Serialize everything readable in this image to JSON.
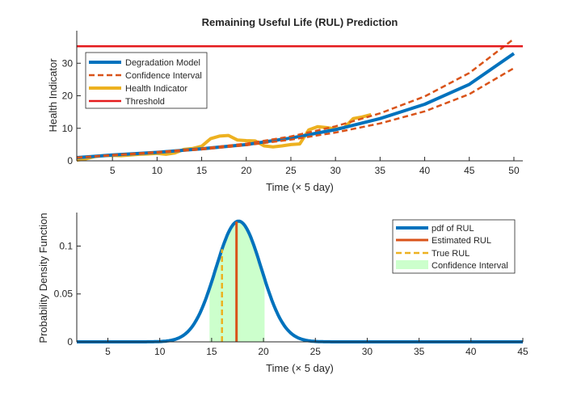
{
  "chart_data": [
    {
      "type": "line",
      "title": "Remaining Useful Life (RUL) Prediction",
      "xlabel": "Time (× 5 day)",
      "ylabel": "Health Indicator",
      "xlim": [
        1,
        51
      ],
      "ylim": [
        0,
        40
      ],
      "xticks": [
        5,
        10,
        15,
        20,
        25,
        30,
        35,
        40,
        45,
        50
      ],
      "yticks": [
        0,
        10,
        20,
        30
      ],
      "grid": false,
      "legend_position": "top-left",
      "series": [
        {
          "name": "Degradation Model",
          "color": "#0072BD",
          "style": "solid",
          "x": [
            1,
            5,
            10,
            15,
            20,
            25,
            30,
            35,
            40,
            45,
            50
          ],
          "y": [
            1.0,
            1.8,
            2.6,
            3.7,
            5.0,
            7.0,
            9.6,
            13.0,
            17.4,
            23.5,
            33.0
          ]
        },
        {
          "name": "Confidence Interval",
          "color": "#D95319",
          "style": "dashed",
          "x": [
            1,
            5,
            10,
            15,
            20,
            25,
            30,
            35,
            40,
            45,
            50
          ],
          "y": [
            1.0,
            1.8,
            2.7,
            3.8,
            5.3,
            7.5,
            10.6,
            14.6,
            19.8,
            27.0,
            37.5
          ]
        },
        {
          "name": "",
          "color": "#D95319",
          "style": "dashed",
          "x": [
            1,
            5,
            10,
            15,
            20,
            25,
            30,
            35,
            40,
            45,
            50
          ],
          "y": [
            1.0,
            1.7,
            2.5,
            3.5,
            4.8,
            6.5,
            8.7,
            11.5,
            15.2,
            20.5,
            28.5
          ]
        },
        {
          "name": "Health Indicator",
          "color": "#EDB120",
          "style": "solid",
          "x": [
            1,
            2,
            3,
            4,
            5,
            6,
            7,
            8,
            9,
            10,
            11,
            12,
            13,
            14,
            15,
            16,
            17,
            18,
            19,
            20,
            21,
            22,
            23,
            24,
            25,
            26,
            27,
            28,
            29,
            30,
            31,
            32,
            33,
            34
          ],
          "y": [
            0.2,
            0.6,
            1.3,
            1.6,
            1.7,
            1.6,
            1.8,
            2.0,
            2.1,
            2.3,
            2.0,
            2.4,
            3.5,
            3.8,
            4.5,
            6.8,
            7.6,
            7.8,
            6.4,
            6.2,
            6.1,
            4.6,
            4.3,
            4.6,
            5.0,
            5.2,
            9.5,
            10.5,
            10.2,
            9.8,
            10.2,
            13.0,
            13.5,
            14.2
          ]
        },
        {
          "name": "Threshold",
          "color": "#E41A1C",
          "style": "solid",
          "x": [
            1,
            51
          ],
          "y": [
            35.2,
            35.2
          ]
        }
      ]
    },
    {
      "type": "area",
      "title": "",
      "xlabel": "Time (× 5 day)",
      "ylabel": "Probability Density Function",
      "xlim": [
        2,
        45
      ],
      "ylim": [
        0,
        0.135
      ],
      "xticks": [
        5,
        10,
        15,
        20,
        25,
        30,
        35,
        40,
        45
      ],
      "yticks": [
        0,
        0.05,
        0.1
      ],
      "yticklabels": [
        "0",
        "0.05",
        "0.1"
      ],
      "grid": false,
      "legend_position": "top-right",
      "pdf_of_rul": {
        "name": "pdf of RUL",
        "color": "#0072BD",
        "mean": 17.6,
        "sd": 2.2,
        "peak": 0.126,
        "x_range": [
          2,
          45
        ]
      },
      "estimated_rul": {
        "name": "Estimated RUL",
        "x": 17.4,
        "color": "#D95319"
      },
      "true_rul": {
        "name": "True RUL",
        "x": 16.0,
        "color": "#EDB120"
      },
      "confidence_interval": {
        "name": "Confidence Interval",
        "x_range": [
          14.8,
          20.1
        ],
        "color": "#CCFFCC"
      }
    }
  ]
}
